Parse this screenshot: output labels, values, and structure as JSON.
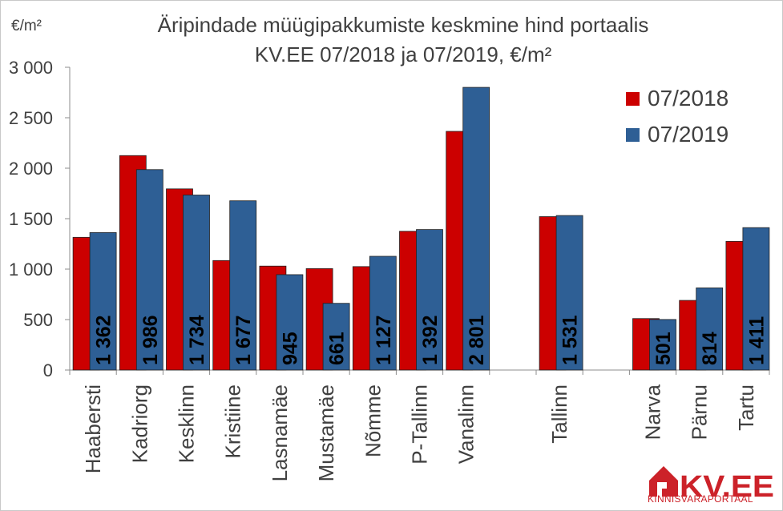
{
  "chart_data": {
    "type": "bar",
    "title": [
      "Äripindade müügipakkumiste keskmine hind portaalis",
      "KV.EE 07/2018 ja 07/2019, €/m²"
    ],
    "ylabel": "€/m²",
    "xlabel": "",
    "ylim": [
      0,
      3000
    ],
    "yticks": [
      "0",
      "500",
      "1 000",
      "1 500",
      "2 000",
      "2 500",
      "3 000"
    ],
    "grid": false,
    "legend_position": "top-right",
    "categories": [
      "Haabersti",
      "Kadriorg",
      "Kesklinn",
      "Kristiine",
      "Lasnamäe",
      "Mustamäe",
      "Nõmme",
      "P-Tallinn",
      "Vanalinn",
      "",
      "Tallinn",
      "",
      "Narva",
      "Pärnu",
      "Tartu"
    ],
    "series": [
      {
        "name": "07/2018",
        "color": "#cc0000",
        "values": [
          1315,
          2125,
          1795,
          1085,
          1030,
          1005,
          1025,
          1375,
          2365,
          null,
          1520,
          null,
          510,
          690,
          1275
        ]
      },
      {
        "name": "07/2019",
        "color": "#2e5f95",
        "values": [
          1362,
          1986,
          1734,
          1677,
          945,
          661,
          1127,
          1392,
          2801,
          null,
          1531,
          null,
          501,
          814,
          1411
        ]
      }
    ],
    "data_labels_2019": [
      "1 362",
      "1 986",
      "1 734",
      "1 677",
      "945",
      "661",
      "1 127",
      "1 392",
      "2 801",
      "",
      "1 531",
      "",
      "501",
      "814",
      "1 411"
    ]
  },
  "logo": {
    "brand": "KV.EE",
    "tagline": "KINNISVARAPORTAAL",
    "icon": "house-icon",
    "color": "#cc2229"
  }
}
